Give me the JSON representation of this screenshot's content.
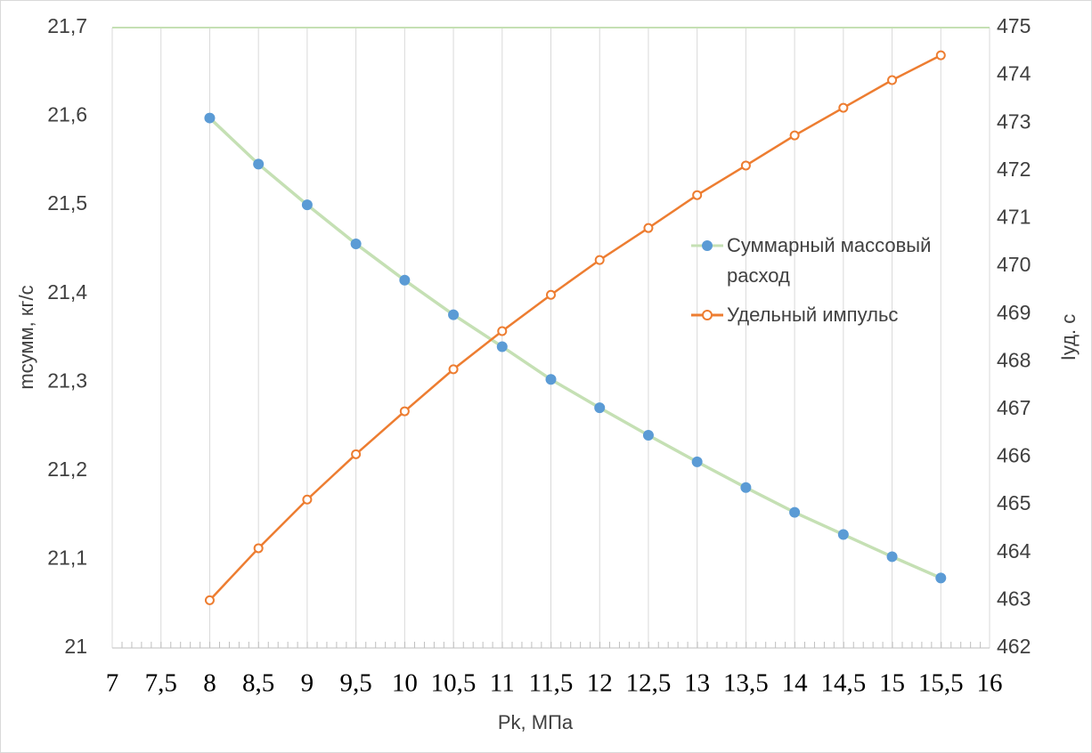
{
  "chart_data": {
    "type": "line",
    "x_label": "Pk, МПа",
    "y_label": "mсумм, кг/с",
    "y2_label": "Iуд. с",
    "x": [
      8,
      8.5,
      9,
      9.5,
      10,
      10.5,
      11,
      11.5,
      12,
      12.5,
      13,
      13.5,
      14,
      14.5,
      15,
      15.5
    ],
    "series": [
      {
        "name": "Суммарный массовый расход",
        "color": "#5b9bd5",
        "line_color": "#c5e0b4",
        "values": [
          21.598,
          21.546,
          21.5,
          21.456,
          21.415,
          21.376,
          21.34,
          21.303,
          21.271,
          21.24,
          21.21,
          21.181,
          21.153,
          21.128,
          21.103,
          21.079
        ]
      },
      {
        "name": "Удельный импульс",
        "color": "#ed7d31",
        "axis": "y2",
        "values": [
          463.0,
          464.09,
          465.11,
          466.06,
          466.96,
          467.84,
          468.64,
          469.4,
          470.13,
          470.8,
          471.49,
          472.11,
          472.74,
          473.32,
          473.9,
          474.42
        ]
      }
    ],
    "xlim": [
      7,
      16
    ],
    "xticks": [
      7,
      {
        "value": 7.5,
        "label": "7,5"
      },
      8,
      {
        "value": 8.5,
        "label": "8,5"
      },
      9,
      {
        "value": 9.5,
        "label": "9,5"
      },
      10,
      {
        "value": 10.5,
        "label": "10,5"
      },
      11,
      {
        "value": 11.5,
        "label": "11,5"
      },
      12,
      {
        "value": 12.5,
        "label": "12,5"
      },
      13,
      {
        "value": 13.5,
        "label": "13,5"
      },
      14,
      {
        "value": 14.5,
        "label": "14,5"
      },
      15,
      {
        "value": 15.5,
        "label": "15,5"
      },
      16
    ],
    "ylim": [
      21,
      21.7
    ],
    "yticks": [
      21,
      {
        "value": 21.1,
        "label": "21,1"
      },
      {
        "value": 21.2,
        "label": "21,2"
      },
      {
        "value": 21.3,
        "label": "21,3"
      },
      {
        "value": 21.4,
        "label": "21,4"
      },
      {
        "value": 21.5,
        "label": "21,5"
      },
      {
        "value": 21.6,
        "label": "21,6"
      },
      {
        "value": 21.7,
        "label": "21,7"
      }
    ],
    "y2lim": [
      462,
      475
    ],
    "y2ticks": [
      462,
      463,
      464,
      465,
      466,
      467,
      468,
      469,
      470,
      471,
      472,
      473,
      474,
      475
    ],
    "grid": true
  }
}
